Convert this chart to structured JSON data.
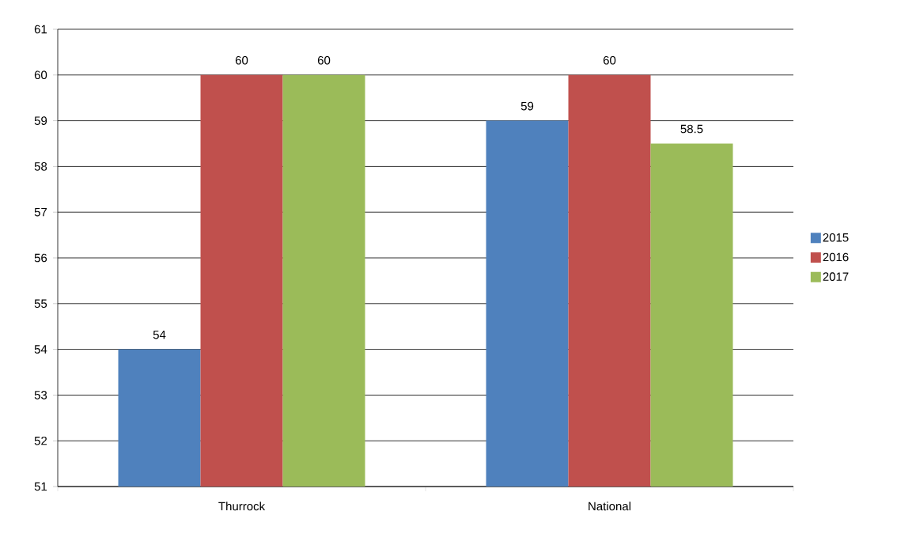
{
  "chart_data": {
    "type": "bar",
    "categories": [
      "Thurrock",
      "National"
    ],
    "series": [
      {
        "name": "2015",
        "color": "#4f81bd",
        "values": [
          54,
          59
        ]
      },
      {
        "name": "2016",
        "color": "#c0504d",
        "values": [
          60,
          60
        ]
      },
      {
        "name": "2017",
        "color": "#9bbb59",
        "values": [
          60,
          58.5
        ]
      }
    ],
    "ylim": [
      51,
      61
    ],
    "yticks": [
      51,
      52,
      53,
      54,
      55,
      56,
      57,
      58,
      59,
      60,
      61
    ],
    "grid": "y",
    "legend": "right",
    "data_labels": true
  }
}
